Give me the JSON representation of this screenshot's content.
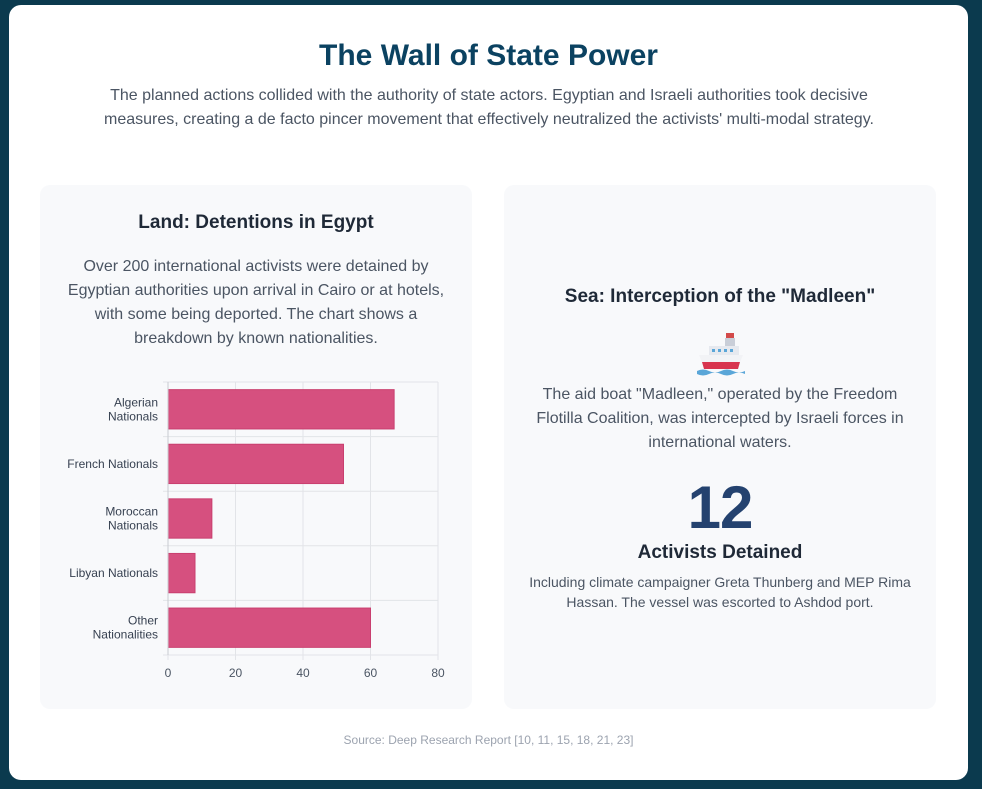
{
  "header": {
    "title": "The Wall of State Power",
    "subtitle": "The planned actions collided with the authority of state actors. Egyptian and Israeli authorities took decisive measures, creating a de facto pincer movement that effectively neutralized the activists' multi-modal strategy."
  },
  "land": {
    "title": "Land: Detentions in Egypt",
    "description": "Over 200 international activists were detained by Egyptian authorities upon arrival in Cairo or at hotels, with some being deported. The chart shows a breakdown by known nationalities."
  },
  "sea": {
    "title": "Sea: Interception of the \"Madleen\"",
    "icon": "ship-icon",
    "description": "The aid boat \"Madleen,\" operated by the Freedom Flotilla Coalition, was intercepted by Israeli forces in international waters.",
    "stat_value": "12",
    "stat_label": "Activists Detained",
    "stat_description": "Including climate campaigner Greta Thunberg and MEP Rima Hassan. The vessel was escorted to Ashdod port."
  },
  "footer": {
    "source": "Source: Deep Research Report [10, 11, 15, 18, 21, 23]"
  },
  "colors": {
    "bar": "#d6507f",
    "bar_border": "#c93f6f",
    "title": "#0b4261",
    "stat": "#24426f"
  },
  "chart_data": {
    "type": "bar",
    "orientation": "horizontal",
    "categories": [
      [
        "Algerian",
        "Nationals"
      ],
      [
        "French Nationals"
      ],
      [
        "Moroccan",
        "Nationals"
      ],
      [
        "Libyan Nationals"
      ],
      [
        "Other",
        "Nationalities"
      ]
    ],
    "values": [
      67,
      52,
      13,
      8,
      60
    ],
    "xlim": [
      0,
      80
    ],
    "xticks": [
      0,
      20,
      40,
      60,
      80
    ],
    "title": "",
    "xlabel": "",
    "ylabel": "",
    "grid": true,
    "legend": "none"
  }
}
